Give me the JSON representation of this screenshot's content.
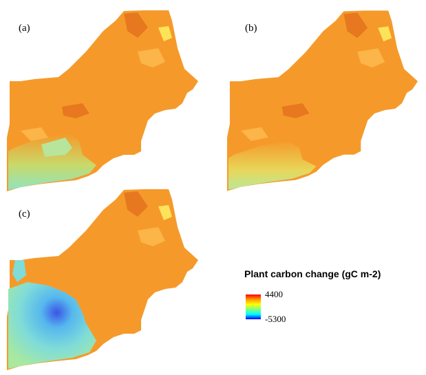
{
  "panels": [
    {
      "id": "a",
      "label": "(a)"
    },
    {
      "id": "b",
      "label": "(b)"
    },
    {
      "id": "c",
      "label": "(c)"
    }
  ],
  "legend": {
    "title": "Plant carbon change (gC m-2)",
    "max_label": "4400",
    "min_label": "-5300",
    "max_value": 4400,
    "min_value": -5300,
    "colormap": [
      "#0000ff",
      "#00ffff",
      "#7fff7f",
      "#ffff00",
      "#ff9900",
      "#ff0000"
    ]
  },
  "colors": {
    "orange": "#f59a2a",
    "light_orange": "#fbb548",
    "dark_orange": "#e7781f",
    "yellow": "#fde35a",
    "green": "#9fe9a5",
    "cyan": "#6fd6e0",
    "blue": "#3a55e6"
  }
}
